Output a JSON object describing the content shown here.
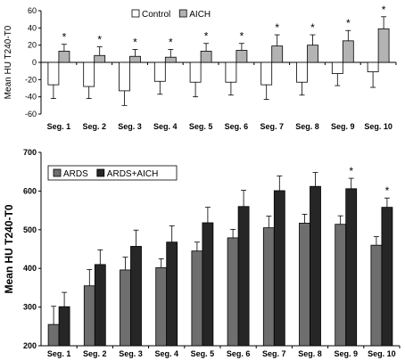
{
  "chart_data": [
    {
      "type": "bar",
      "categories": [
        "Seg. 1",
        "Seg. 2",
        "Seg. 3",
        "Seg. 4",
        "Seg. 5",
        "Seg. 6",
        "Seg. 7",
        "Seg. 8",
        "Seg. 9",
        "Seg. 10"
      ],
      "series": [
        {
          "name": "Control",
          "color": "#ffffff",
          "values": [
            -26,
            -28,
            -33,
            -22,
            -23,
            -23,
            -26,
            -23,
            -13,
            -11
          ],
          "errors": [
            16,
            14,
            17,
            15,
            17,
            15,
            17,
            15,
            14,
            18
          ]
        },
        {
          "name": "AICH",
          "color": "#b3b3b3",
          "values": [
            13,
            8,
            7,
            6,
            13,
            14,
            19,
            20,
            25,
            39
          ],
          "errors": [
            8,
            10,
            8,
            9,
            9,
            8,
            13,
            12,
            12,
            14
          ]
        }
      ],
      "significance": [
        "*",
        "*",
        "*",
        "*",
        "*",
        "*",
        "*",
        "*",
        "*",
        "*"
      ],
      "ylabel": "Mean HU T240-T0",
      "ylim": [
        -60,
        60
      ],
      "yticks": [
        -60,
        -40,
        -20,
        0,
        20,
        40,
        60
      ],
      "legend": "top-center"
    },
    {
      "type": "bar",
      "categories": [
        "Seg. 1",
        "Seg. 2",
        "Seg. 3",
        "Seg. 4",
        "Seg. 5",
        "Seg. 6",
        "Seg. 7",
        "Seg. 8",
        "Seg. 9",
        "Seg. 10"
      ],
      "series": [
        {
          "name": "ARDS",
          "color": "#6e6e6e",
          "values": [
            255,
            355,
            396,
            402,
            445,
            479,
            505,
            517,
            514,
            460
          ],
          "errors": [
            47,
            42,
            33,
            23,
            23,
            22,
            30,
            23,
            22,
            22
          ]
        },
        {
          "name": "ARDS+AICH",
          "color": "#262626",
          "values": [
            301,
            410,
            457,
            468,
            518,
            560,
            601,
            612,
            606,
            558
          ],
          "errors": [
            37,
            38,
            42,
            42,
            40,
            42,
            38,
            36,
            27,
            24
          ]
        }
      ],
      "significance": [
        "",
        "",
        "",
        "",
        "",
        "",
        "",
        "",
        "*",
        "*"
      ],
      "ylabel": "Mean HU T240-T0",
      "ylim": [
        200,
        700
      ],
      "yticks": [
        200,
        300,
        400,
        500,
        600,
        700
      ],
      "legend": "top-left"
    }
  ]
}
